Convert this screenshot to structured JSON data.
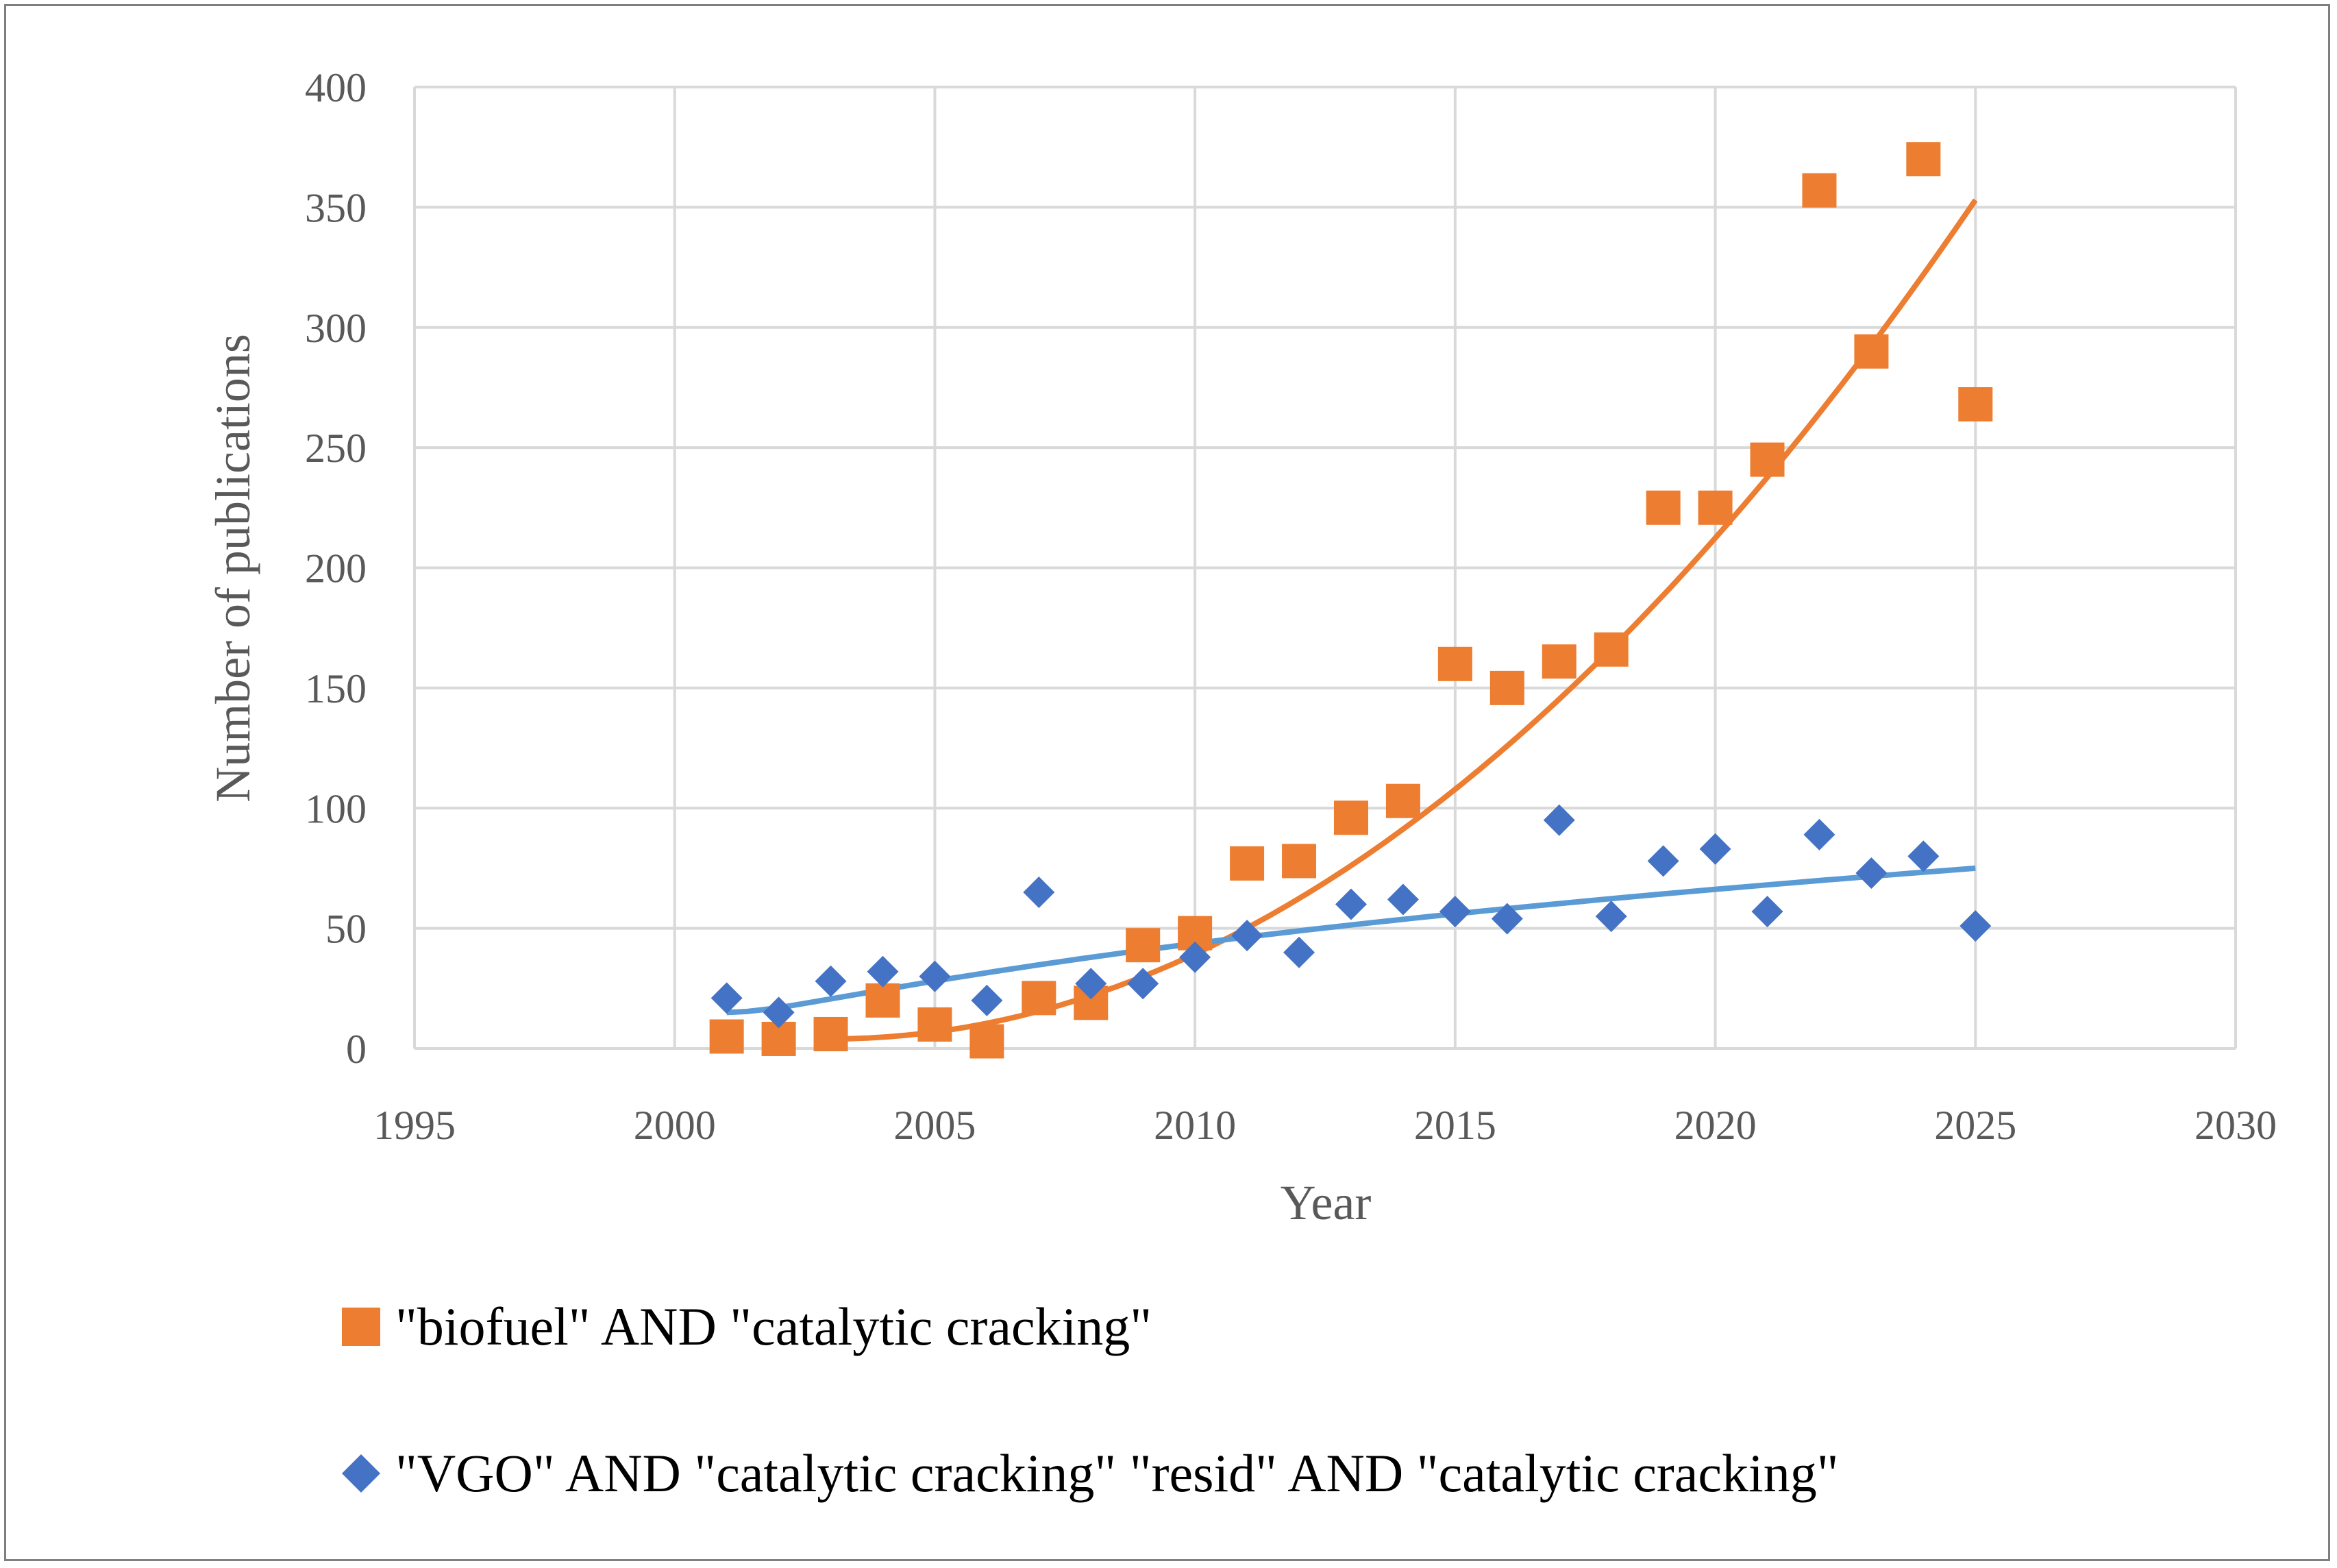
{
  "chart_data": {
    "type": "scatter",
    "title": "",
    "xlabel": "Year",
    "ylabel": "Number of publications",
    "xlim": [
      1995,
      2030
    ],
    "ylim": [
      0,
      400
    ],
    "xticks": [
      1995,
      2000,
      2005,
      2010,
      2015,
      2020,
      2025,
      2030
    ],
    "yticks": [
      0,
      50,
      100,
      150,
      200,
      250,
      300,
      350,
      400
    ],
    "grid": true,
    "legend_position": "bottom",
    "series": [
      {
        "name": "\"biofuel\" AND \"catalytic cracking\"",
        "marker": "square",
        "color": "#ED7D31",
        "x": [
          2001,
          2002,
          2003,
          2004,
          2005,
          2006,
          2007,
          2008,
          2009,
          2010,
          2011,
          2012,
          2013,
          2014,
          2015,
          2016,
          2017,
          2018,
          2019,
          2020,
          2021,
          2022,
          2023,
          2024,
          2025
        ],
        "y": [
          5,
          4,
          6,
          20,
          10,
          3,
          21,
          19,
          43,
          48,
          77,
          78,
          96,
          103,
          160,
          150,
          161,
          166,
          225,
          225,
          245,
          357,
          290,
          370,
          268
        ],
        "trendline": {
          "x_start": 2003,
          "x_end": 2025,
          "y_start": 4,
          "y_end": 353
        }
      },
      {
        "name": "\"VGO\" AND \"catalytic cracking\" \"resid\" AND \"catalytic cracking\"",
        "marker": "diamond",
        "color": "#4472C4",
        "trend_color": "#5B9BD5",
        "x": [
          2001,
          2002,
          2003,
          2004,
          2005,
          2006,
          2007,
          2008,
          2009,
          2010,
          2011,
          2012,
          2013,
          2014,
          2015,
          2016,
          2017,
          2018,
          2019,
          2020,
          2021,
          2022,
          2023,
          2024,
          2025
        ],
        "y": [
          21,
          15,
          28,
          32,
          30,
          20,
          65,
          27,
          27,
          38,
          47,
          40,
          60,
          62,
          57,
          54,
          95,
          55,
          78,
          83,
          57,
          89,
          73,
          80,
          51
        ],
        "trendline": {
          "x_start": 2001,
          "x_end": 2025,
          "y_start": 15,
          "y_end": 75
        }
      }
    ]
  }
}
